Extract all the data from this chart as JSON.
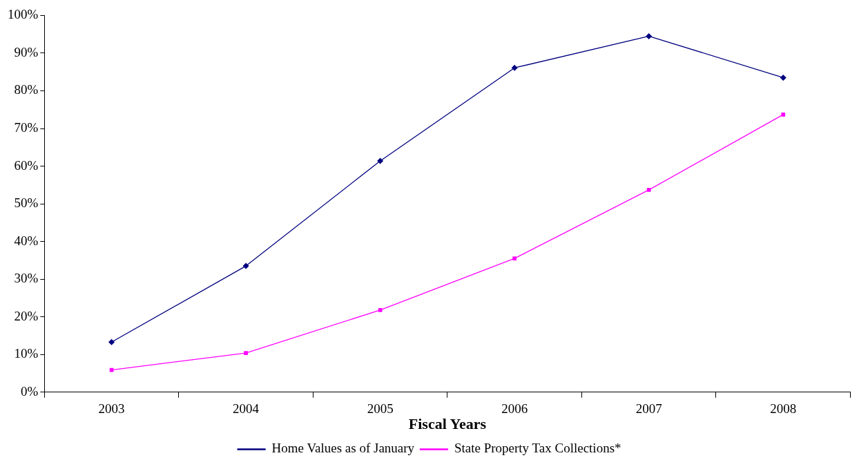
{
  "chart_data": {
    "type": "line",
    "xlabel": "Fiscal Years",
    "categories": [
      "2003",
      "2004",
      "2005",
      "2006",
      "2007",
      "2008"
    ],
    "series": [
      {
        "name": "Home Values as of January",
        "color": "#000080",
        "marker": "diamond",
        "values": [
          13.3,
          33.5,
          61.4,
          86.1,
          94.5,
          83.5
        ]
      },
      {
        "name": "State Property Tax Collections*",
        "color": "#ff00ff",
        "marker": "square",
        "values": [
          5.9,
          10.4,
          21.8,
          35.5,
          53.7,
          73.7
        ]
      }
    ],
    "ylim": [
      0,
      100
    ],
    "yticks": [
      {
        "value": 0,
        "label": "0%"
      },
      {
        "value": 10,
        "label": "10%"
      },
      {
        "value": 20,
        "label": "20%"
      },
      {
        "value": 30,
        "label": "30%"
      },
      {
        "value": 40,
        "label": "40%"
      },
      {
        "value": 50,
        "label": "50%"
      },
      {
        "value": 60,
        "label": "60%"
      },
      {
        "value": 70,
        "label": "70%"
      },
      {
        "value": 80,
        "label": "80%"
      },
      {
        "value": 90,
        "label": "90%"
      },
      {
        "value": 100,
        "label": "100%"
      }
    ],
    "grid": false,
    "legend": "bottom",
    "line_style": "solid"
  }
}
